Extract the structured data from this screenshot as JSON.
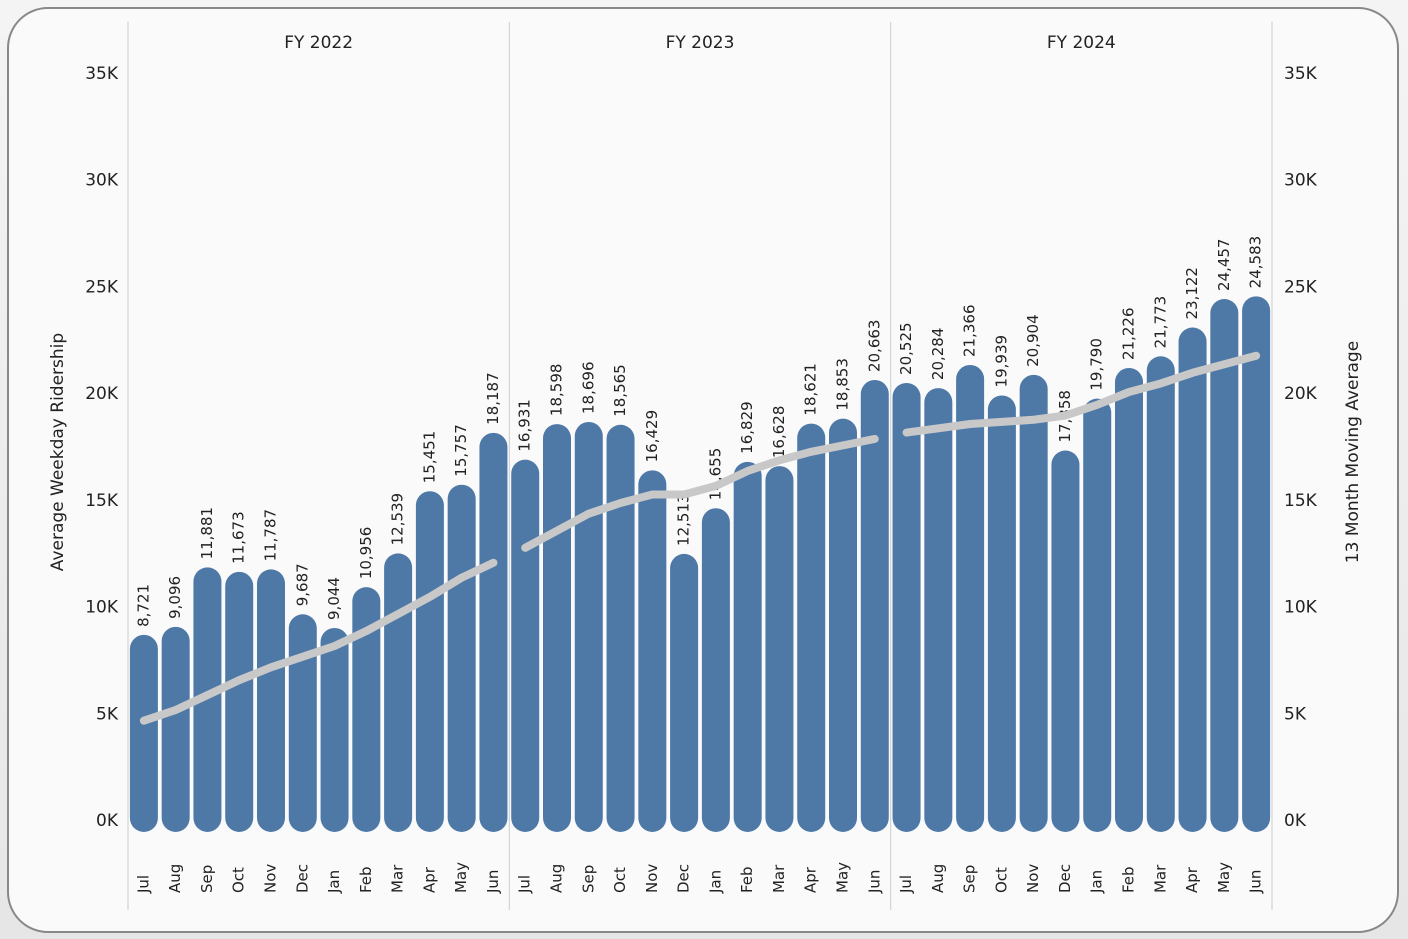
{
  "chart_data": {
    "type": "bar",
    "ylabel": "Average Weekday Ridership",
    "y2label": "13 Month Moving Average",
    "ylim": [
      0,
      35000
    ],
    "yticks": [
      {
        "value": 0,
        "label": "0K"
      },
      {
        "value": 5000,
        "label": "5K"
      },
      {
        "value": 10000,
        "label": "10K"
      },
      {
        "value": 15000,
        "label": "15K"
      },
      {
        "value": 20000,
        "label": "20K"
      },
      {
        "value": 25000,
        "label": "25K"
      },
      {
        "value": 30000,
        "label": "30K"
      },
      {
        "value": 35000,
        "label": "35K"
      }
    ],
    "y2lim": [
      0,
      35000
    ],
    "y2ticks": [
      {
        "value": 0,
        "label": "0K"
      },
      {
        "value": 5000,
        "label": "5K"
      },
      {
        "value": 10000,
        "label": "10K"
      },
      {
        "value": 15000,
        "label": "15K"
      },
      {
        "value": 20000,
        "label": "20K"
      },
      {
        "value": 25000,
        "label": "25K"
      },
      {
        "value": 30000,
        "label": "30K"
      },
      {
        "value": 35000,
        "label": "35K"
      }
    ],
    "panels": [
      {
        "title": "FY 2022",
        "categories": [
          "Jul",
          "Aug",
          "Sep",
          "Oct",
          "Nov",
          "Dec",
          "Jan",
          "Feb",
          "Mar",
          "Apr",
          "May",
          "Jun"
        ],
        "series": [
          {
            "type": "bar",
            "color": "#4e79a7",
            "values": [
              8721,
              9096,
              11881,
              11673,
              11787,
              9687,
              9044,
              10956,
              12539,
              15451,
              15757,
              18187
            ],
            "value_labels": [
              "8,721",
              "9,096",
              "11,881",
              "11,673",
              "11,787",
              "9,687",
              "9,044",
              "10,956",
              "12,539",
              "15,451",
              "15,757",
              "18,187"
            ]
          },
          {
            "type": "line",
            "axis": "y2",
            "color": "#c8c8c8",
            "values": [
              4700,
              5200,
              5900,
              6600,
              7200,
              7700,
              8200,
              8900,
              9700,
              10500,
              11400,
              12100
            ]
          }
        ]
      },
      {
        "title": "FY 2023",
        "categories": [
          "Jul",
          "Aug",
          "Sep",
          "Oct",
          "Nov",
          "Dec",
          "Jan",
          "Feb",
          "Mar",
          "Apr",
          "May",
          "Jun"
        ],
        "series": [
          {
            "type": "bar",
            "color": "#4e79a7",
            "values": [
              16931,
              18598,
              18696,
              18565,
              16429,
              12513,
              14655,
              16829,
              16628,
              18621,
              18853,
              20663
            ],
            "value_labels": [
              "16,931",
              "18,598",
              "18,696",
              "18,565",
              "16,429",
              "12,513",
              "14,655",
              "16,829",
              "16,628",
              "18,621",
              "18,853",
              "20,663"
            ]
          },
          {
            "type": "line",
            "axis": "y2",
            "color": "#c8c8c8",
            "values": [
              12800,
              13600,
              14400,
              14900,
              15300,
              15300,
              15700,
              16400,
              16900,
              17300,
              17600,
              17900
            ]
          }
        ]
      },
      {
        "title": "FY 2024",
        "categories": [
          "Jul",
          "Aug",
          "Sep",
          "Oct",
          "Nov",
          "Dec",
          "Jan",
          "Feb",
          "Mar",
          "Apr",
          "May",
          "Jun"
        ],
        "series": [
          {
            "type": "bar",
            "color": "#4e79a7",
            "values": [
              20525,
              20284,
              21366,
              19939,
              20904,
              17358,
              19790,
              21226,
              21773,
              23122,
              24457,
              24583
            ],
            "value_labels": [
              "20,525",
              "20,284",
              "21,366",
              "19,939",
              "20,904",
              "17,358",
              "19,790",
              "21,226",
              "21,773",
              "23,122",
              "24,457",
              "24,583"
            ]
          },
          {
            "type": "line",
            "axis": "y2",
            "color": "#c8c8c8",
            "values": [
              18200,
              18400,
              18600,
              18700,
              18800,
              19000,
              19500,
              20100,
              20500,
              21000,
              21400,
              21800
            ]
          }
        ]
      }
    ]
  }
}
